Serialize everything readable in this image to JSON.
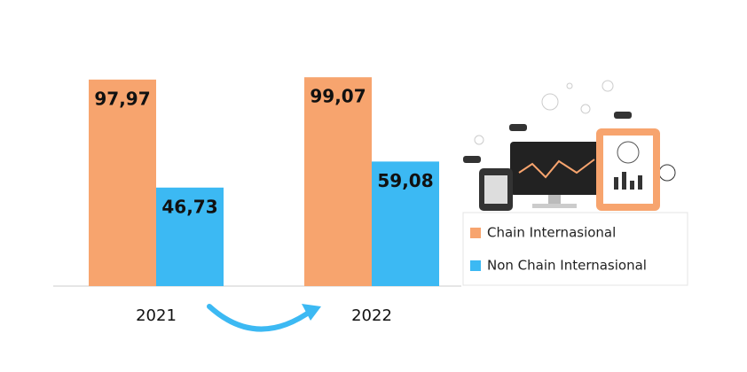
{
  "chart_data": {
    "type": "bar",
    "categories": [
      "2021",
      "2022"
    ],
    "series": [
      {
        "name": "Chain Internasional",
        "color": "#f7a46e",
        "values": [
          97.97,
          99.07
        ],
        "value_labels": [
          "97,97",
          "99,07"
        ]
      },
      {
        "name": "Non Chain Internasional",
        "color": "#3cb9f3",
        "values": [
          46.73,
          59.08
        ],
        "value_labels": [
          "46,73",
          "59,08"
        ]
      }
    ],
    "ylim": [
      0,
      100
    ]
  }
}
